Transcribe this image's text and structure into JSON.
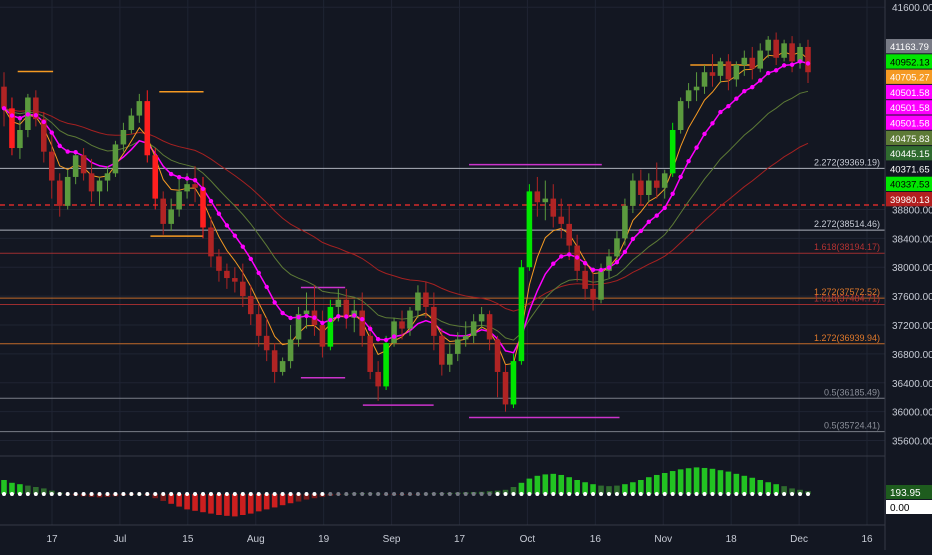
{
  "colors": {
    "background": "#131722",
    "grid": "#1f2433",
    "up": "#5b9a3e",
    "up_bright": "#00e600",
    "down": "#b02424",
    "down_bright": "#ff1f1f",
    "ema_fast": "#f59a23",
    "ema_mid": "#ff00ff",
    "ema_slow": "#5d7a36",
    "ema_long": "#a52121",
    "axis_text": "#c8ccd6",
    "fib_white": "#c8ccd6",
    "fib_red": "#b43232",
    "fib_orange": "#e0792b",
    "fib_gray": "#8b8f99"
  },
  "chart_data": [
    {
      "type": "candlestick",
      "title": "",
      "y_axis": {
        "range": [
          35400,
          41700
        ],
        "ticks": [
          "41600.00",
          "38800.00",
          "38400.00",
          "38000.00",
          "37600.00",
          "37200.00",
          "36800.00",
          "36400.00",
          "36000.00",
          "35600.00"
        ]
      },
      "x_axis": {
        "ticks": [
          "17",
          "Jul",
          "15",
          "Aug",
          "19",
          "Sep",
          "17",
          "Oct",
          "16",
          "Nov",
          "18",
          "Dec",
          "16"
        ]
      },
      "grid": true,
      "price_badges": [
        {
          "label": "41163.79",
          "color": "#787b86",
          "text_color": "#ffffff"
        },
        {
          "label": "40952.13",
          "color": "#00e600",
          "text_color": "#000000"
        },
        {
          "label": "40705.27",
          "color": "#f59a23",
          "text_color": "#ffffff"
        },
        {
          "label": "40501.58",
          "color": "#ff00ff",
          "text_color": "#ffffff"
        },
        {
          "label": "40501.58",
          "color": "#ff00ff",
          "text_color": "#ffffff"
        },
        {
          "label": "40501.58",
          "color": "#ff00ff",
          "text_color": "#ffffff"
        },
        {
          "label": "40475.83",
          "color": "#5d7a36",
          "text_color": "#ffffff"
        },
        {
          "label": "40445.15",
          "color": "#2f6b2f",
          "text_color": "#ffffff"
        },
        {
          "label": "40371.65",
          "color": "#131722",
          "text_color": "#ffffff"
        },
        {
          "label": "40337.53",
          "color": "#00e600",
          "text_color": "#000000"
        },
        {
          "label": "39980.13",
          "color": "#b21f1f",
          "text_color": "#ffffff"
        }
      ],
      "fib_levels": [
        {
          "label": "2.272(39369.19)",
          "price": 39369.19,
          "color": "#c8ccd6"
        },
        {
          "label": "2.272(38514.46)",
          "price": 38514.46,
          "color": "#c8ccd6"
        },
        {
          "label": "1.618(38194.17)",
          "price": 38194.17,
          "color": "#b43232"
        },
        {
          "label": "1.272(37572.52)",
          "price": 37572.52,
          "color": "#e0792b"
        },
        {
          "label": "1.618(37484.71)",
          "price": 37484.71,
          "color": "#b43232"
        },
        {
          "label": "1.272(36939.94)",
          "price": 36939.94,
          "color": "#e0792b"
        },
        {
          "label": "0.5(36185.49)",
          "price": 36185.49,
          "color": "#8b8f99"
        },
        {
          "label": "0.5(35724.41)",
          "price": 35724.41,
          "color": "#8b8f99"
        }
      ],
      "dashed_levels": [
        {
          "price": 38862,
          "color": "#d42a2a"
        }
      ],
      "segments": [
        {
          "x0": 0.02,
          "x1": 0.06,
          "price": 40710,
          "color": "#f59a23"
        },
        {
          "x0": 0.18,
          "x1": 0.23,
          "price": 40430,
          "color": "#f59a23"
        },
        {
          "x0": 0.17,
          "x1": 0.23,
          "price": 38430,
          "color": "#f59a23"
        },
        {
          "x0": 0.53,
          "x1": 0.68,
          "price": 39420,
          "color": "#cc33cc"
        },
        {
          "x0": 0.53,
          "x1": 0.7,
          "price": 35920,
          "color": "#cc33cc"
        },
        {
          "x0": 0.34,
          "x1": 0.39,
          "price": 37720,
          "color": "#cc33cc"
        },
        {
          "x0": 0.34,
          "x1": 0.39,
          "price": 36470,
          "color": "#cc33cc"
        },
        {
          "x0": 0.41,
          "x1": 0.49,
          "price": 36090,
          "color": "#cc33cc"
        },
        {
          "x0": 0.78,
          "x1": 0.85,
          "price": 40800,
          "color": "#f59a23"
        }
      ],
      "candles": [
        {
          "o": 40500,
          "h": 40700,
          "c": 40200,
          "l": 39950
        },
        {
          "o": 40200,
          "h": 40350,
          "c": 39650,
          "l": 39550
        },
        {
          "o": 39650,
          "h": 40050,
          "c": 39900,
          "l": 39500
        },
        {
          "o": 39900,
          "h": 40400,
          "c": 40350,
          "l": 39800
        },
        {
          "o": 40350,
          "h": 40450,
          "c": 40050,
          "l": 39950
        },
        {
          "o": 40050,
          "h": 40150,
          "c": 39600,
          "l": 39450
        },
        {
          "o": 39600,
          "h": 39850,
          "c": 39200,
          "l": 38950
        },
        {
          "o": 39200,
          "h": 39300,
          "c": 38850,
          "l": 38700
        },
        {
          "o": 38850,
          "h": 39350,
          "c": 39250,
          "l": 38800
        },
        {
          "o": 39250,
          "h": 39600,
          "c": 39550,
          "l": 39150
        },
        {
          "o": 39550,
          "h": 39650,
          "c": 39300,
          "l": 39200
        },
        {
          "o": 39300,
          "h": 39500,
          "c": 39050,
          "l": 38900
        },
        {
          "o": 39050,
          "h": 39250,
          "c": 39200,
          "l": 38850
        },
        {
          "o": 39200,
          "h": 39400,
          "c": 39300,
          "l": 39050
        },
        {
          "o": 39300,
          "h": 39750,
          "c": 39700,
          "l": 39250
        },
        {
          "o": 39700,
          "h": 40000,
          "c": 39900,
          "l": 39600
        },
        {
          "o": 39900,
          "h": 40200,
          "c": 40100,
          "l": 39850
        },
        {
          "o": 40100,
          "h": 40400,
          "c": 40300,
          "l": 40000
        },
        {
          "o": 40300,
          "h": 40450,
          "c": 39550,
          "l": 39450
        },
        {
          "o": 39550,
          "h": 39650,
          "c": 38950,
          "l": 38800
        },
        {
          "o": 38950,
          "h": 39050,
          "c": 38600,
          "l": 38450
        },
        {
          "o": 38600,
          "h": 38950,
          "c": 38800,
          "l": 38500
        },
        {
          "o": 38800,
          "h": 39250,
          "c": 39050,
          "l": 38700
        },
        {
          "o": 39050,
          "h": 39300,
          "c": 39150,
          "l": 38950
        },
        {
          "o": 39150,
          "h": 39400,
          "c": 39100,
          "l": 38900
        },
        {
          "o": 39100,
          "h": 39250,
          "c": 38550,
          "l": 38400
        },
        {
          "o": 38550,
          "h": 38700,
          "c": 38150,
          "l": 38000
        },
        {
          "o": 38150,
          "h": 38250,
          "c": 37950,
          "l": 37800
        },
        {
          "o": 37950,
          "h": 38050,
          "c": 37850,
          "l": 37700
        },
        {
          "o": 37850,
          "h": 38000,
          "c": 37800,
          "l": 37650
        },
        {
          "o": 37800,
          "h": 38050,
          "c": 37600,
          "l": 37450
        },
        {
          "o": 37600,
          "h": 37750,
          "c": 37350,
          "l": 37200
        },
        {
          "o": 37350,
          "h": 37500,
          "c": 37050,
          "l": 36900
        },
        {
          "o": 37050,
          "h": 37300,
          "c": 36850,
          "l": 36700
        },
        {
          "o": 36850,
          "h": 36950,
          "c": 36550,
          "l": 36400
        },
        {
          "o": 36550,
          "h": 36750,
          "c": 36700,
          "l": 36500
        },
        {
          "o": 36700,
          "h": 37200,
          "c": 37000,
          "l": 36600
        },
        {
          "o": 37000,
          "h": 37450,
          "c": 37350,
          "l": 36900
        },
        {
          "o": 37350,
          "h": 37650,
          "c": 37400,
          "l": 37150
        },
        {
          "o": 37400,
          "h": 37750,
          "c": 37200,
          "l": 37050
        },
        {
          "o": 37200,
          "h": 37400,
          "c": 36900,
          "l": 36750
        },
        {
          "o": 36900,
          "h": 37550,
          "c": 37450,
          "l": 36850
        },
        {
          "o": 37450,
          "h": 37700,
          "c": 37550,
          "l": 37250
        },
        {
          "o": 37550,
          "h": 37700,
          "c": 37300,
          "l": 37150
        },
        {
          "o": 37300,
          "h": 37550,
          "c": 37400,
          "l": 37100
        },
        {
          "o": 37400,
          "h": 37650,
          "c": 37050,
          "l": 36900
        },
        {
          "o": 37050,
          "h": 37200,
          "c": 36550,
          "l": 36450
        },
        {
          "o": 36550,
          "h": 36700,
          "c": 36350,
          "l": 36150
        },
        {
          "o": 36350,
          "h": 37050,
          "c": 36950,
          "l": 36300
        },
        {
          "o": 36950,
          "h": 37300,
          "c": 37250,
          "l": 36900
        },
        {
          "o": 37250,
          "h": 37400,
          "c": 37150,
          "l": 37000
        },
        {
          "o": 37150,
          "h": 37450,
          "c": 37400,
          "l": 37050
        },
        {
          "o": 37400,
          "h": 37750,
          "c": 37650,
          "l": 37300
        },
        {
          "o": 37650,
          "h": 37800,
          "c": 37450,
          "l": 37300
        },
        {
          "o": 37450,
          "h": 37650,
          "c": 37050,
          "l": 36850
        },
        {
          "o": 37050,
          "h": 37150,
          "c": 36650,
          "l": 36500
        },
        {
          "o": 36650,
          "h": 36950,
          "c": 36800,
          "l": 36550
        },
        {
          "o": 36800,
          "h": 37100,
          "c": 37000,
          "l": 36700
        },
        {
          "o": 37000,
          "h": 37250,
          "c": 37050,
          "l": 36900
        },
        {
          "o": 37050,
          "h": 37350,
          "c": 37250,
          "l": 36950
        },
        {
          "o": 37250,
          "h": 37450,
          "c": 37350,
          "l": 37150
        },
        {
          "o": 37350,
          "h": 37400,
          "c": 37000,
          "l": 36850
        },
        {
          "o": 37000,
          "h": 37050,
          "c": 36550,
          "l": 36200
        },
        {
          "o": 36550,
          "h": 36650,
          "c": 36100,
          "l": 36000
        },
        {
          "o": 36100,
          "h": 36800,
          "c": 36700,
          "l": 36050
        },
        {
          "o": 36700,
          "h": 38100,
          "c": 38000,
          "l": 36650
        },
        {
          "o": 38000,
          "h": 39150,
          "c": 39050,
          "l": 37950
        },
        {
          "o": 39050,
          "h": 39250,
          "c": 38900,
          "l": 38700
        },
        {
          "o": 38900,
          "h": 39200,
          "c": 38950,
          "l": 38650
        },
        {
          "o": 38950,
          "h": 39150,
          "c": 38700,
          "l": 38550
        },
        {
          "o": 38700,
          "h": 38950,
          "c": 38600,
          "l": 38400
        },
        {
          "o": 38600,
          "h": 38850,
          "c": 38300,
          "l": 38100
        },
        {
          "o": 38300,
          "h": 38450,
          "c": 37950,
          "l": 37800
        },
        {
          "o": 37950,
          "h": 38100,
          "c": 37700,
          "l": 37550
        },
        {
          "o": 37700,
          "h": 37950,
          "c": 37550,
          "l": 37400
        },
        {
          "o": 37550,
          "h": 38050,
          "c": 37950,
          "l": 37500
        },
        {
          "o": 37950,
          "h": 38250,
          "c": 38150,
          "l": 37850
        },
        {
          "o": 38150,
          "h": 38500,
          "c": 38400,
          "l": 38050
        },
        {
          "o": 38400,
          "h": 38950,
          "c": 38850,
          "l": 38300
        },
        {
          "o": 38850,
          "h": 39300,
          "c": 39200,
          "l": 38750
        },
        {
          "o": 39200,
          "h": 39350,
          "c": 39000,
          "l": 38850
        },
        {
          "o": 39000,
          "h": 39300,
          "c": 39200,
          "l": 38900
        },
        {
          "o": 39200,
          "h": 39450,
          "c": 39100,
          "l": 38950
        },
        {
          "o": 39100,
          "h": 39350,
          "c": 39300,
          "l": 38950
        },
        {
          "o": 39300,
          "h": 40000,
          "c": 39900,
          "l": 39250
        },
        {
          "o": 39900,
          "h": 40350,
          "c": 40300,
          "l": 39850
        },
        {
          "o": 40300,
          "h": 40550,
          "c": 40450,
          "l": 40200
        },
        {
          "o": 40450,
          "h": 40700,
          "c": 40500,
          "l": 40300
        },
        {
          "o": 40500,
          "h": 40800,
          "c": 40700,
          "l": 40400
        },
        {
          "o": 40700,
          "h": 40950,
          "c": 40650,
          "l": 40500
        },
        {
          "o": 40650,
          "h": 40900,
          "c": 40850,
          "l": 40550
        },
        {
          "o": 40850,
          "h": 40950,
          "c": 40600,
          "l": 40450
        },
        {
          "o": 40600,
          "h": 40850,
          "c": 40800,
          "l": 40500
        },
        {
          "o": 40800,
          "h": 41000,
          "c": 40900,
          "l": 40650
        },
        {
          "o": 40900,
          "h": 41050,
          "c": 40750,
          "l": 40600
        },
        {
          "o": 40750,
          "h": 41100,
          "c": 41000,
          "l": 40700
        },
        {
          "o": 41000,
          "h": 41200,
          "c": 41150,
          "l": 40900
        },
        {
          "o": 41150,
          "h": 41250,
          "c": 40900,
          "l": 40800
        },
        {
          "o": 40900,
          "h": 41150,
          "c": 41100,
          "l": 40850
        },
        {
          "o": 41100,
          "h": 41200,
          "c": 40850,
          "l": 40700
        },
        {
          "o": 40850,
          "h": 41100,
          "c": 41050,
          "l": 40750
        },
        {
          "o": 41050,
          "h": 41150,
          "c": 40700,
          "l": 40550
        }
      ],
      "indicator": {
        "badges": [
          {
            "label": "193.95",
            "color": "#1e5c1e",
            "text_color": "#ffffff"
          },
          {
            "label": "0.00",
            "color": "#ffffff",
            "text_color": "#000000"
          }
        ],
        "histogram": [
          0.5,
          0.4,
          0.35,
          0.3,
          0.25,
          0.2,
          0.12,
          0.05,
          -0.02,
          -0.05,
          -0.08,
          -0.1,
          -0.12,
          -0.1,
          -0.08,
          -0.05,
          -0.03,
          0.0,
          -0.05,
          -0.15,
          -0.25,
          -0.35,
          -0.45,
          -0.55,
          -0.6,
          -0.65,
          -0.7,
          -0.75,
          -0.78,
          -0.8,
          -0.75,
          -0.7,
          -0.62,
          -0.55,
          -0.48,
          -0.4,
          -0.33,
          -0.27,
          -0.2,
          -0.15,
          -0.1,
          -0.06,
          -0.03,
          0.0,
          0.02,
          0.03,
          0.02,
          0.01,
          -0.01,
          -0.02,
          -0.03,
          -0.02,
          -0.01,
          0.01,
          0.02,
          0.03,
          0.04,
          0.05,
          0.06,
          0.07,
          0.08,
          0.1,
          0.12,
          0.15,
          0.25,
          0.4,
          0.55,
          0.65,
          0.7,
          0.72,
          0.68,
          0.6,
          0.5,
          0.42,
          0.35,
          0.3,
          0.28,
          0.3,
          0.35,
          0.42,
          0.5,
          0.6,
          0.68,
          0.75,
          0.82,
          0.88,
          0.92,
          0.95,
          0.93,
          0.9,
          0.85,
          0.8,
          0.72,
          0.65,
          0.58,
          0.5,
          0.42,
          0.35,
          0.28,
          0.2,
          0.15,
          0.1
        ]
      }
    }
  ]
}
